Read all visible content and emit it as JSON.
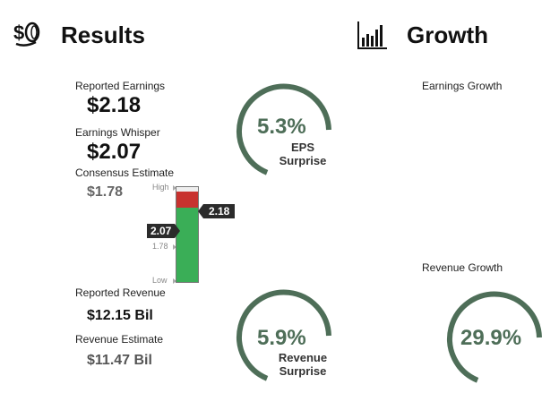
{
  "results": {
    "title": "Results",
    "icon": "money-icon",
    "reported_earnings_label": "Reported Earnings",
    "reported_earnings_value": "$2.18",
    "whisper_label": "Earnings Whisper",
    "whisper_value": "$2.07",
    "consensus_label": "Consensus Estimate",
    "consensus_value": "$1.78",
    "eps_surprise": {
      "value": "5.3%",
      "line1": "EPS",
      "line2": "Surprise",
      "fraction": 0.053
    },
    "meter": {
      "high_label": "High",
      "mid_label": "1.78",
      "low_label": "Low",
      "reported_tag": "2.18",
      "whisper_tag": "2.07",
      "reported_level": 0.95,
      "whisper_level": 0.78,
      "red": "#c8322f",
      "green": "#3aae57"
    },
    "reported_revenue_label": "Reported Revenue",
    "reported_revenue_value": "$12.15 Bil",
    "revenue_estimate_label": "Revenue Estimate",
    "revenue_estimate_value": "$11.47 Bil",
    "revenue_surprise": {
      "value": "5.9%",
      "line1": "Revenue",
      "line2": "Surprise",
      "fraction": 0.059
    }
  },
  "growth": {
    "title": "Growth",
    "icon": "bar-chart-icon",
    "earnings_growth_label": "Earnings Growth",
    "revenue_growth_label": "Revenue Growth",
    "revenue_growth": {
      "value": "29.9%",
      "fraction": 0.299
    }
  },
  "colors": {
    "gauge": "#4e6e58",
    "accent_text": "#4e6e58"
  }
}
